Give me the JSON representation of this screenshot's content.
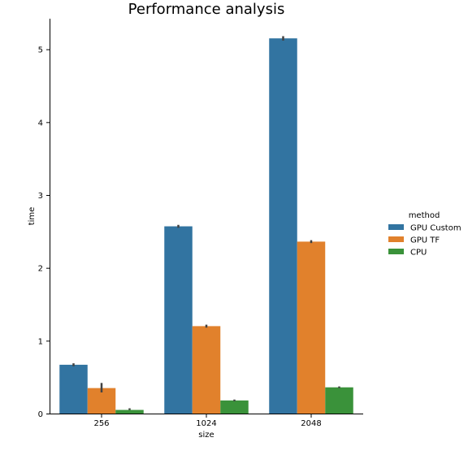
{
  "chart_data": {
    "type": "bar",
    "title": "Performance analysis",
    "xlabel": "size",
    "ylabel": "time",
    "categories": [
      "256",
      "1024",
      "2048"
    ],
    "ylim": [
      0,
      5.42
    ],
    "yticks": [
      "0",
      "1",
      "2",
      "3",
      "4",
      "5"
    ],
    "grid": false,
    "legend": {
      "title": "method",
      "placement": "right"
    },
    "series": [
      {
        "name": "GPU Custom",
        "color": "#3274a1",
        "values": [
          0.67,
          2.57,
          5.15
        ],
        "ci": [
          [
            0.65,
            0.69
          ],
          [
            2.55,
            2.59
          ],
          [
            5.12,
            5.18
          ]
        ]
      },
      {
        "name": "GPU TF",
        "color": "#e1812c",
        "values": [
          0.35,
          1.2,
          2.36
        ],
        "ci": [
          [
            0.29,
            0.42
          ],
          [
            1.18,
            1.22
          ],
          [
            2.34,
            2.38
          ]
        ]
      },
      {
        "name": "CPU",
        "color": "#3a923a",
        "values": [
          0.05,
          0.18,
          0.36
        ],
        "ci": [
          [
            0.05,
            0.05
          ],
          [
            0.17,
            0.19
          ],
          [
            0.35,
            0.37
          ]
        ]
      }
    ]
  }
}
